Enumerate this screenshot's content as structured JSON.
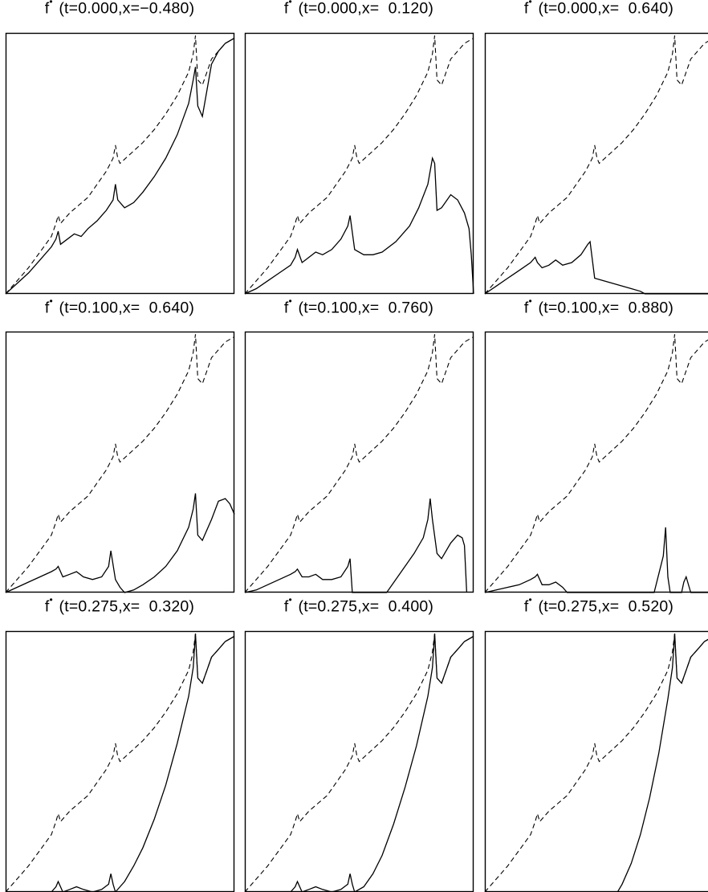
{
  "figure": {
    "panels": [
      {
        "title_prefix": "f",
        "title_sup": "•",
        "title": "(t=0.000,x=−0.480)"
      },
      {
        "title_prefix": "f",
        "title_sup": "•",
        "title": "(t=0.000,x=  0.120)"
      },
      {
        "title_prefix": "f",
        "title_sup": "•",
        "title": "(t=0.000,x=  0.640)"
      },
      {
        "title_prefix": "f",
        "title_sup": "•",
        "title": "(t=0.100,x=  0.640)"
      },
      {
        "title_prefix": "f",
        "title_sup": "•",
        "title": "(t=0.100,x=  0.760)"
      },
      {
        "title_prefix": "f",
        "title_sup": "•",
        "title": "(t=0.100,x=  0.880)"
      },
      {
        "title_prefix": "f",
        "title_sup": "•",
        "title": "(t=0.275,x=  0.320)"
      },
      {
        "title_prefix": "f",
        "title_sup": "•",
        "title": "(t=0.275,x=  0.400)"
      },
      {
        "title_prefix": "f",
        "title_sup": "•",
        "title": "(t=0.275,x=  0.520)"
      }
    ]
  },
  "chart_data": {
    "type": "line",
    "layout": "3x3 grid of small multiples",
    "axes": "unlabeled, no ticks, no grid",
    "xlim": [
      0,
      1
    ],
    "ylim": [
      0,
      1
    ],
    "line_color": "#000000",
    "reference_curve": {
      "style": "dashed/dotted",
      "x": [
        0.0,
        0.05,
        0.1,
        0.15,
        0.2,
        0.22,
        0.23,
        0.24,
        0.28,
        0.32,
        0.36,
        0.4,
        0.44,
        0.47,
        0.48,
        0.49,
        0.5,
        0.55,
        0.6,
        0.65,
        0.7,
        0.75,
        0.8,
        0.82,
        0.83,
        0.84,
        0.86,
        0.88,
        0.9,
        0.93,
        0.96,
        1.0
      ],
      "y": [
        0.0,
        0.05,
        0.1,
        0.16,
        0.22,
        0.27,
        0.3,
        0.27,
        0.31,
        0.34,
        0.37,
        0.42,
        0.47,
        0.52,
        0.57,
        0.52,
        0.5,
        0.54,
        0.58,
        0.63,
        0.69,
        0.76,
        0.85,
        0.92,
        0.99,
        0.82,
        0.8,
        0.85,
        0.9,
        0.93,
        0.96,
        0.98
      ]
    },
    "panels": [
      {
        "title": "(t=0.000,x=−0.480)",
        "curve": {
          "x": [
            0.0,
            0.05,
            0.1,
            0.15,
            0.2,
            0.22,
            0.23,
            0.24,
            0.27,
            0.3,
            0.33,
            0.36,
            0.4,
            0.44,
            0.47,
            0.48,
            0.49,
            0.52,
            0.56,
            0.6,
            0.65,
            0.7,
            0.75,
            0.8,
            0.82,
            0.83,
            0.84,
            0.86,
            0.88,
            0.9,
            0.93,
            0.96,
            1.0
          ],
          "y": [
            0.0,
            0.04,
            0.08,
            0.13,
            0.18,
            0.21,
            0.24,
            0.19,
            0.21,
            0.23,
            0.22,
            0.25,
            0.28,
            0.32,
            0.36,
            0.42,
            0.36,
            0.33,
            0.35,
            0.39,
            0.45,
            0.52,
            0.61,
            0.73,
            0.82,
            0.87,
            0.72,
            0.68,
            0.78,
            0.88,
            0.93,
            0.96,
            0.98
          ]
        }
      },
      {
        "title": "(t=0.000,x=  0.120)",
        "curve": {
          "x": [
            0.0,
            0.05,
            0.1,
            0.15,
            0.2,
            0.22,
            0.23,
            0.25,
            0.28,
            0.31,
            0.34,
            0.38,
            0.42,
            0.45,
            0.46,
            0.48,
            0.52,
            0.56,
            0.6,
            0.66,
            0.72,
            0.76,
            0.8,
            0.82,
            0.83,
            0.84,
            0.86,
            0.9,
            0.93,
            0.96,
            0.98,
            0.99,
            1.0
          ],
          "y": [
            0.0,
            0.02,
            0.05,
            0.08,
            0.11,
            0.14,
            0.17,
            0.12,
            0.14,
            0.16,
            0.15,
            0.17,
            0.21,
            0.26,
            0.3,
            0.17,
            0.15,
            0.15,
            0.16,
            0.2,
            0.26,
            0.33,
            0.42,
            0.52,
            0.5,
            0.32,
            0.33,
            0.38,
            0.36,
            0.31,
            0.25,
            0.15,
            0.0
          ]
        }
      },
      {
        "title": "(t=0.000,x=  0.640)",
        "curve": {
          "x": [
            0.0,
            0.05,
            0.1,
            0.15,
            0.2,
            0.22,
            0.23,
            0.25,
            0.28,
            0.31,
            0.34,
            0.38,
            0.42,
            0.45,
            0.46,
            0.48,
            0.52,
            0.56,
            0.6,
            0.64,
            0.68,
            0.7,
            1.0
          ],
          "y": [
            0.0,
            0.03,
            0.06,
            0.09,
            0.12,
            0.14,
            0.12,
            0.1,
            0.11,
            0.13,
            0.11,
            0.12,
            0.15,
            0.19,
            0.2,
            0.06,
            0.05,
            0.04,
            0.03,
            0.02,
            0.01,
            0.0,
            0.0
          ]
        }
      },
      {
        "title": "(t=0.100,x=  0.640)",
        "curve": {
          "x": [
            0.0,
            0.05,
            0.1,
            0.15,
            0.2,
            0.22,
            0.23,
            0.25,
            0.28,
            0.31,
            0.34,
            0.38,
            0.42,
            0.45,
            0.46,
            0.48,
            0.5,
            0.52,
            0.56,
            0.6,
            0.65,
            0.7,
            0.75,
            0.8,
            0.82,
            0.83,
            0.84,
            0.86,
            0.9,
            0.93,
            0.96,
            0.98,
            1.0
          ],
          "y": [
            0.0,
            0.02,
            0.04,
            0.06,
            0.08,
            0.09,
            0.1,
            0.06,
            0.07,
            0.08,
            0.06,
            0.05,
            0.06,
            0.1,
            0.16,
            0.05,
            0.02,
            0.0,
            0.01,
            0.03,
            0.06,
            0.1,
            0.16,
            0.25,
            0.32,
            0.38,
            0.22,
            0.2,
            0.28,
            0.35,
            0.36,
            0.34,
            0.3
          ]
        }
      },
      {
        "title": "(t=0.100,x=  0.760)",
        "curve": {
          "x": [
            0.0,
            0.05,
            0.1,
            0.15,
            0.2,
            0.22,
            0.23,
            0.25,
            0.28,
            0.31,
            0.34,
            0.38,
            0.42,
            0.45,
            0.46,
            0.47,
            0.5,
            0.62,
            0.66,
            0.7,
            0.74,
            0.78,
            0.8,
            0.81,
            0.82,
            0.84,
            0.86,
            0.9,
            0.93,
            0.95,
            0.96,
            0.97
          ],
          "y": [
            0.0,
            0.01,
            0.03,
            0.05,
            0.07,
            0.08,
            0.09,
            0.06,
            0.06,
            0.07,
            0.05,
            0.05,
            0.06,
            0.1,
            0.13,
            0.0,
            0.0,
            0.0,
            0.05,
            0.1,
            0.15,
            0.21,
            0.28,
            0.36,
            0.28,
            0.15,
            0.13,
            0.19,
            0.22,
            0.21,
            0.18,
            0.0
          ]
        }
      },
      {
        "title": "(t=0.100,x=  0.880)",
        "curve": {
          "x": [
            0.0,
            0.05,
            0.1,
            0.15,
            0.2,
            0.22,
            0.23,
            0.25,
            0.28,
            0.31,
            0.34,
            0.36,
            0.4,
            0.72,
            0.74,
            0.76,
            0.78,
            0.79,
            0.8,
            0.81,
            0.82,
            0.84,
            0.86,
            0.87,
            0.88,
            0.9,
            0.91,
            1.0
          ],
          "y": [
            0.0,
            0.01,
            0.02,
            0.03,
            0.05,
            0.06,
            0.07,
            0.03,
            0.03,
            0.04,
            0.02,
            0.0,
            0.0,
            0.0,
            0.0,
            0.07,
            0.14,
            0.25,
            0.06,
            0.0,
            0.0,
            0.0,
            0.0,
            0.04,
            0.06,
            0.0,
            0.0,
            0.0
          ]
        }
      },
      {
        "title": "(t=0.275,x=  0.320)",
        "curve": {
          "x": [
            0.0,
            0.1,
            0.2,
            0.22,
            0.23,
            0.25,
            0.28,
            0.31,
            0.34,
            0.38,
            0.42,
            0.45,
            0.46,
            0.47,
            0.48,
            0.52,
            0.56,
            0.6,
            0.65,
            0.7,
            0.75,
            0.8,
            0.82,
            0.83,
            0.84,
            0.86,
            0.88,
            0.9,
            0.93,
            0.96,
            1.0
          ],
          "y": [
            0.0,
            0.0,
            0.0,
            0.02,
            0.04,
            0.0,
            0.01,
            0.02,
            0.01,
            0.0,
            0.01,
            0.03,
            0.07,
            0.03,
            0.0,
            0.04,
            0.1,
            0.17,
            0.28,
            0.41,
            0.57,
            0.75,
            0.86,
            0.99,
            0.82,
            0.8,
            0.85,
            0.9,
            0.93,
            0.96,
            0.98
          ]
        }
      },
      {
        "title": "(t=0.275,x=  0.400)",
        "curve": {
          "x": [
            0.0,
            0.1,
            0.2,
            0.22,
            0.23,
            0.25,
            0.28,
            0.31,
            0.34,
            0.38,
            0.42,
            0.45,
            0.46,
            0.47,
            0.48,
            0.52,
            0.56,
            0.6,
            0.65,
            0.7,
            0.75,
            0.8,
            0.82,
            0.83,
            0.84,
            0.86,
            0.88,
            0.9,
            0.93,
            0.96,
            1.0
          ],
          "y": [
            0.0,
            0.0,
            0.0,
            0.02,
            0.04,
            0.0,
            0.01,
            0.02,
            0.01,
            0.0,
            0.01,
            0.03,
            0.07,
            0.03,
            0.0,
            0.02,
            0.07,
            0.14,
            0.26,
            0.4,
            0.56,
            0.75,
            0.86,
            0.99,
            0.82,
            0.8,
            0.85,
            0.9,
            0.93,
            0.96,
            0.98
          ]
        }
      },
      {
        "title": "(t=0.275,x=  0.520)",
        "curve": {
          "x": [
            0.0,
            0.2,
            0.4,
            0.58,
            0.6,
            0.64,
            0.68,
            0.72,
            0.76,
            0.8,
            0.82,
            0.83,
            0.84,
            0.86,
            0.88,
            0.9,
            0.93,
            0.96,
            1.0
          ],
          "y": [
            0.0,
            0.0,
            0.0,
            0.0,
            0.03,
            0.11,
            0.22,
            0.36,
            0.53,
            0.74,
            0.86,
            0.99,
            0.82,
            0.8,
            0.85,
            0.9,
            0.93,
            0.96,
            0.98
          ]
        }
      }
    ]
  }
}
